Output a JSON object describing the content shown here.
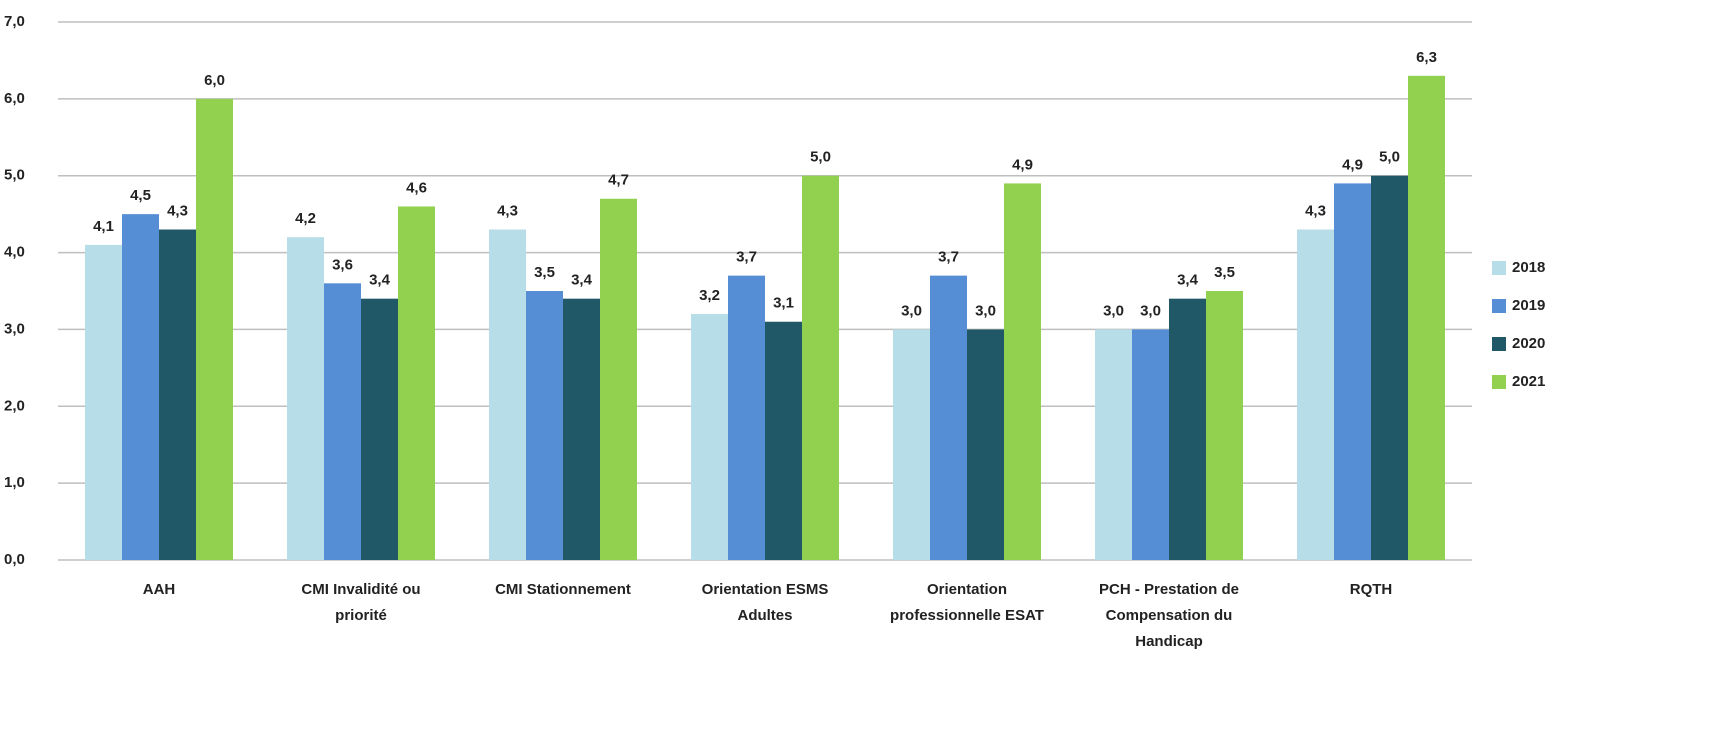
{
  "chart_data": {
    "type": "bar",
    "categories": [
      "AAH",
      "CMI Invalidité ou priorité",
      "CMI Stationnement",
      "Orientation ESMS Adultes",
      "Orientation professionnelle ESAT",
      "PCH - Prestation de Compensation du Handicap",
      "RQTH"
    ],
    "series": [
      {
        "name": "2018",
        "color": "#b7dde8",
        "values": [
          4.1,
          4.2,
          4.3,
          3.2,
          3.0,
          3.0,
          4.3
        ],
        "value_labels": [
          "4,1",
          "4,2",
          "4,3",
          "3,2",
          "3,0",
          "3,0",
          "4,3"
        ]
      },
      {
        "name": "2019",
        "color": "#558ed5",
        "values": [
          4.5,
          3.6,
          3.5,
          3.7,
          3.7,
          3.0,
          4.9
        ],
        "value_labels": [
          "4,5",
          "3,6",
          "3,5",
          "3,7",
          "3,7",
          "3,0",
          "4,9"
        ]
      },
      {
        "name": "2020",
        "color": "#215868",
        "values": [
          4.3,
          3.4,
          3.4,
          3.1,
          3.0,
          3.4,
          5.0
        ],
        "value_labels": [
          "4,3",
          "3,4",
          "3,4",
          "3,1",
          "3,0",
          "3,4",
          "5,0"
        ]
      },
      {
        "name": "2021",
        "color": "#92d050",
        "values": [
          6.0,
          4.6,
          4.7,
          5.0,
          4.9,
          3.5,
          6.3
        ],
        "value_labels": [
          "6,0",
          "4,6",
          "4,7",
          "5,0",
          "4,9",
          "3,5",
          "6,3"
        ]
      }
    ],
    "ylim": [
      0,
      7
    ],
    "yticks": [
      {
        "value": 0,
        "label": "0,0"
      },
      {
        "value": 1,
        "label": "1,0"
      },
      {
        "value": 2,
        "label": "2,0"
      },
      {
        "value": 3,
        "label": "3,0"
      },
      {
        "value": 4,
        "label": "4,0"
      },
      {
        "value": 5,
        "label": "5,0"
      },
      {
        "value": 6,
        "label": "6,0"
      },
      {
        "value": 7,
        "label": "7,0"
      }
    ],
    "grid": true,
    "legend": "right"
  }
}
